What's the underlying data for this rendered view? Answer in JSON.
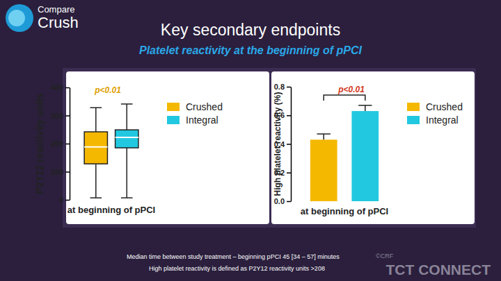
{
  "page": {
    "logo": [
      "Compare",
      "Crush"
    ],
    "title": "Key secondary endpoints",
    "subtitle": "Platelet reactivity at the beginning of pPCI",
    "footnotes": [
      "Median time between study treatment – beginning pPCI 45 [34 – 57] minutes",
      "High platelet reactivity is defined as P2Y12 reactivity units >208"
    ],
    "copyright": "©CRF",
    "watermark": "TCT CONNECT"
  },
  "chart_data": [
    {
      "type": "box",
      "categories": [
        "at beginning of pPCI"
      ],
      "y_label": "P2Y12 reactivity units",
      "annotations": [
        "p<0.01"
      ],
      "ylim": [
        0,
        400
      ],
      "yticks": [
        0,
        100,
        200,
        300,
        400
      ],
      "legend": "top-right",
      "series": [
        {
          "name": "Crushed",
          "color": "#f5b800",
          "min": [
            7
          ],
          "q1": [
            128
          ],
          "median": [
            188
          ],
          "q3": [
            242
          ],
          "max": [
            328
          ]
        },
        {
          "name": "Integral",
          "color": "#22c8e0",
          "min": [
            7
          ],
          "q1": [
            185
          ],
          "median": [
            222
          ],
          "q3": [
            249
          ],
          "max": [
            341
          ]
        }
      ]
    },
    {
      "type": "bar",
      "categories": [
        "at beginning of pPCI"
      ],
      "y_label": "High platelet reactivity (%)",
      "annotations": [
        "p<0.01"
      ],
      "ylim": [
        0,
        0.8
      ],
      "yticks": [
        {
          "value": 0,
          "label": "0.0"
        },
        0.2,
        0.4,
        0.6,
        0.8
      ],
      "legend": "top-right",
      "series": [
        {
          "name": "Crushed",
          "color": "#f5b800",
          "values": [
            0.43
          ],
          "errors": [
            0.04
          ]
        },
        {
          "name": "Integral",
          "color": "#22c8e0",
          "values": [
            0.63
          ],
          "errors": [
            0.04
          ]
        }
      ]
    }
  ]
}
